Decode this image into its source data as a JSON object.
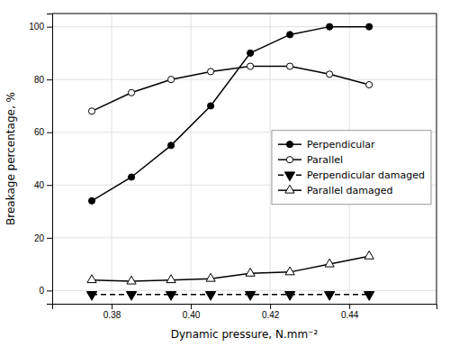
{
  "chart_data": {
    "type": "line",
    "xlabel": "Dynamic pressure, N.mm⁻²",
    "ylabel": "Breakage percentage, %",
    "x": [
      0.375,
      0.385,
      0.395,
      0.405,
      0.415,
      0.425,
      0.435,
      0.445
    ],
    "series": [
      {
        "name": "Perpendicular",
        "color": "#000000",
        "marker": "circle",
        "line_style": "solid",
        "values": [
          34,
          43,
          55,
          70,
          90,
          97,
          100,
          100
        ]
      },
      {
        "name": "Parallel",
        "color": "#000000",
        "marker": "circle-open",
        "line_style": "solid",
        "values": [
          68,
          75,
          80,
          83,
          85,
          85,
          82,
          78
        ]
      },
      {
        "name": "Perpendicular damaged",
        "color": "#000000",
        "marker": "triangle-down",
        "line_style": "dashed",
        "values": [
          -1.5,
          -1.5,
          -1.5,
          -1.5,
          -1.5,
          -1.5,
          -1.5,
          -1.5
        ]
      },
      {
        "name": "Parallel damaged",
        "color": "#000000",
        "marker": "triangle-up-open",
        "line_style": "solid",
        "values": [
          4,
          3.5,
          4,
          4.5,
          6.5,
          7,
          10,
          13
        ]
      }
    ],
    "xlim": [
      0.365,
      0.462
    ],
    "ylim": [
      -5,
      105
    ],
    "xticks": [
      0.38,
      {
        "value": 0.4,
        "label": "0.40"
      },
      0.42,
      0.44
    ],
    "yticks": [
      0,
      20,
      40,
      60,
      80,
      100
    ],
    "grid": true,
    "legend": "right"
  }
}
